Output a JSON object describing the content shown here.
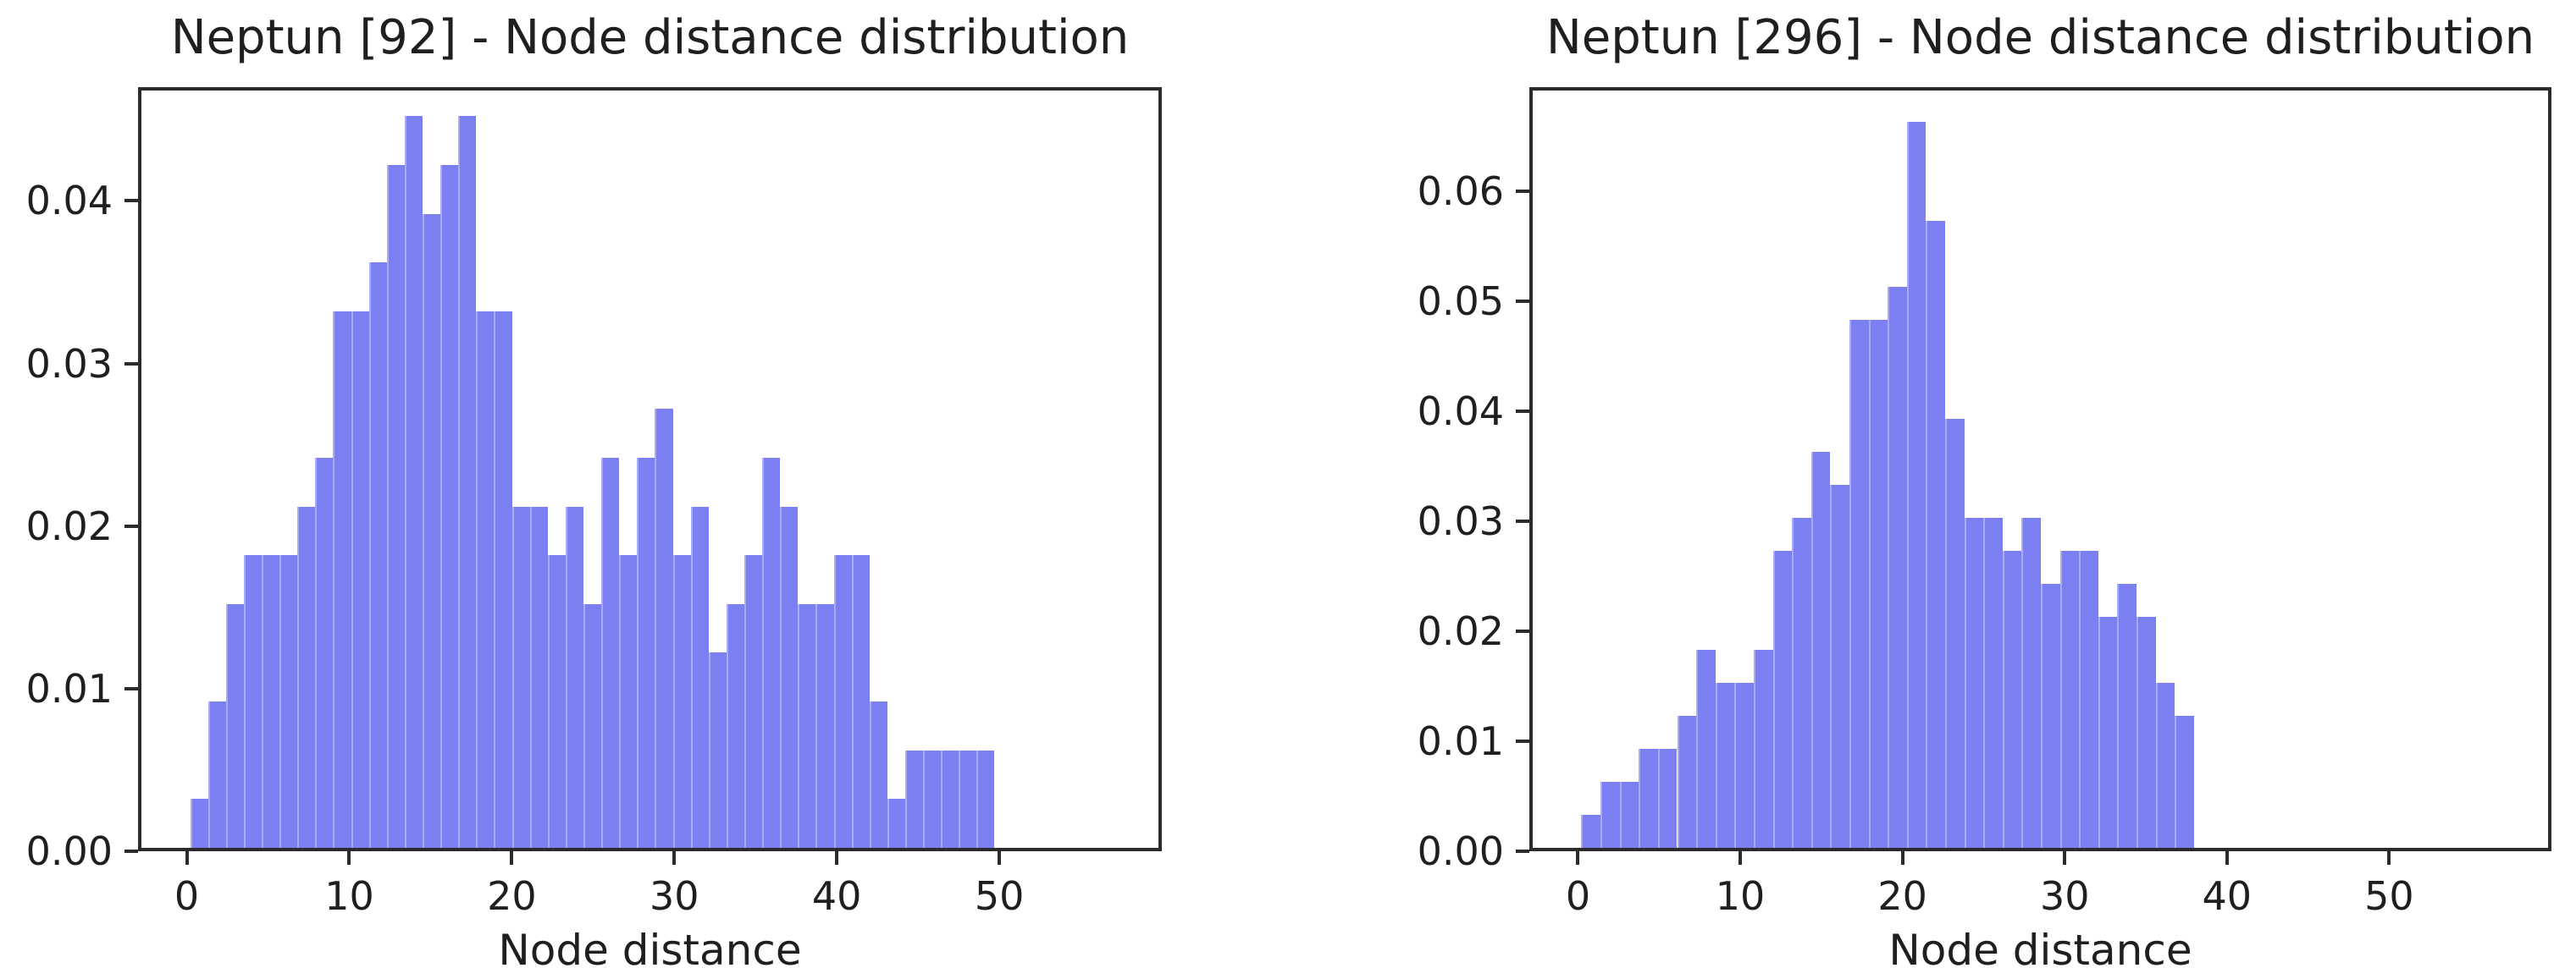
{
  "colors": {
    "bar": "#7b7ff2",
    "axis": "#2b2b2b",
    "text": "#1f1f1f",
    "background": "#ffffff"
  },
  "chart_data": [
    {
      "type": "bar",
      "style": "histogram",
      "title": "Neptun [92] - Node distance distribution",
      "xlabel": "Node distance",
      "ylabel": "",
      "xlim": [
        -3.0,
        60.0
      ],
      "ylim": [
        0,
        0.047
      ],
      "grid": false,
      "legend": "none",
      "xticks": [
        0,
        10,
        20,
        30,
        40,
        50
      ],
      "yticks": {
        "values": [
          0.0,
          0.01,
          0.02,
          0.03,
          0.04
        ],
        "labels": [
          "0.00",
          "0.01",
          "0.02",
          "0.03",
          "0.04"
        ]
      },
      "bins": {
        "start": 0,
        "width": 1.1,
        "values": [
          0.003,
          0.009,
          0.015,
          0.018,
          0.018,
          0.018,
          0.021,
          0.024,
          0.033,
          0.033,
          0.036,
          0.042,
          0.045,
          0.039,
          0.042,
          0.045,
          0.033,
          0.033,
          0.021,
          0.021,
          0.018,
          0.021,
          0.015,
          0.024,
          0.018,
          0.024,
          0.027,
          0.018,
          0.021,
          0.012,
          0.015,
          0.018,
          0.024,
          0.021,
          0.015,
          0.015,
          0.018,
          0.018,
          0.009,
          0.003,
          0.006,
          0.006,
          0.006,
          0.006,
          0.006
        ]
      }
    },
    {
      "type": "bar",
      "style": "histogram",
      "title": "Neptun [296] - Node distance distribution",
      "xlabel": "Node distance",
      "ylabel": "",
      "xlim": [
        -3.0,
        60.0
      ],
      "ylim": [
        0,
        0.0695
      ],
      "grid": false,
      "legend": "none",
      "xticks": [
        0,
        10,
        20,
        30,
        40,
        50
      ],
      "yticks": {
        "values": [
          0.0,
          0.01,
          0.02,
          0.03,
          0.04,
          0.05,
          0.06
        ],
        "labels": [
          "0.00",
          "0.01",
          "0.02",
          "0.03",
          "0.04",
          "0.05",
          "0.06"
        ]
      },
      "bins": {
        "start": 0,
        "width": 1.18,
        "values": [
          0.003,
          0.006,
          0.006,
          0.009,
          0.009,
          0.012,
          0.018,
          0.015,
          0.015,
          0.018,
          0.027,
          0.03,
          0.036,
          0.033,
          0.048,
          0.048,
          0.051,
          0.066,
          0.057,
          0.039,
          0.03,
          0.03,
          0.027,
          0.03,
          0.024,
          0.027,
          0.027,
          0.021,
          0.024,
          0.021,
          0.015,
          0.012
        ]
      }
    }
  ]
}
